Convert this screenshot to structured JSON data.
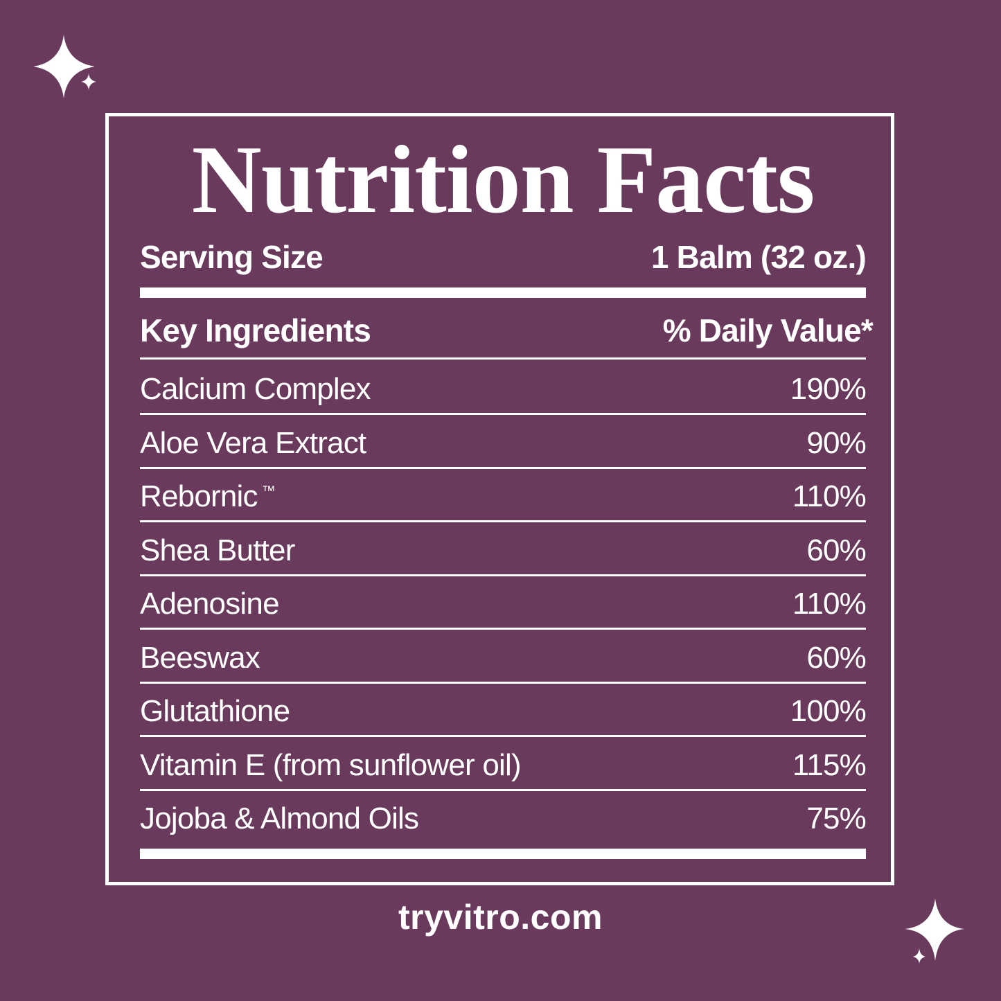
{
  "title": "Nutrition Facts",
  "serving": {
    "label": "Serving Size",
    "value": "1 Balm (32 oz.)"
  },
  "header": {
    "left": "Key Ingredients",
    "right": "% Daily Value*"
  },
  "ingredients": [
    {
      "name": "Calcium Complex",
      "value": "190%"
    },
    {
      "name": "Aloe Vera Extract",
      "value": "90%"
    },
    {
      "name": "Rebornic",
      "mark": "™",
      "value": "110%"
    },
    {
      "name": "Shea Butter",
      "value": "60%"
    },
    {
      "name": "Adenosine",
      "value": "110%"
    },
    {
      "name": "Beeswax",
      "value": "60%"
    },
    {
      "name": "Glutathione",
      "value": "100%"
    },
    {
      "name": "Vitamin E (from sunflower oil)",
      "value": "115%"
    },
    {
      "name": "Jojoba & Almond Oils",
      "value": "75%"
    }
  ],
  "website": "tryvitro.com",
  "colors": {
    "background": "#6a3a5c",
    "foreground": "#ffffff"
  },
  "icons": [
    "sparkle-icon",
    "sparkle-icon"
  ]
}
